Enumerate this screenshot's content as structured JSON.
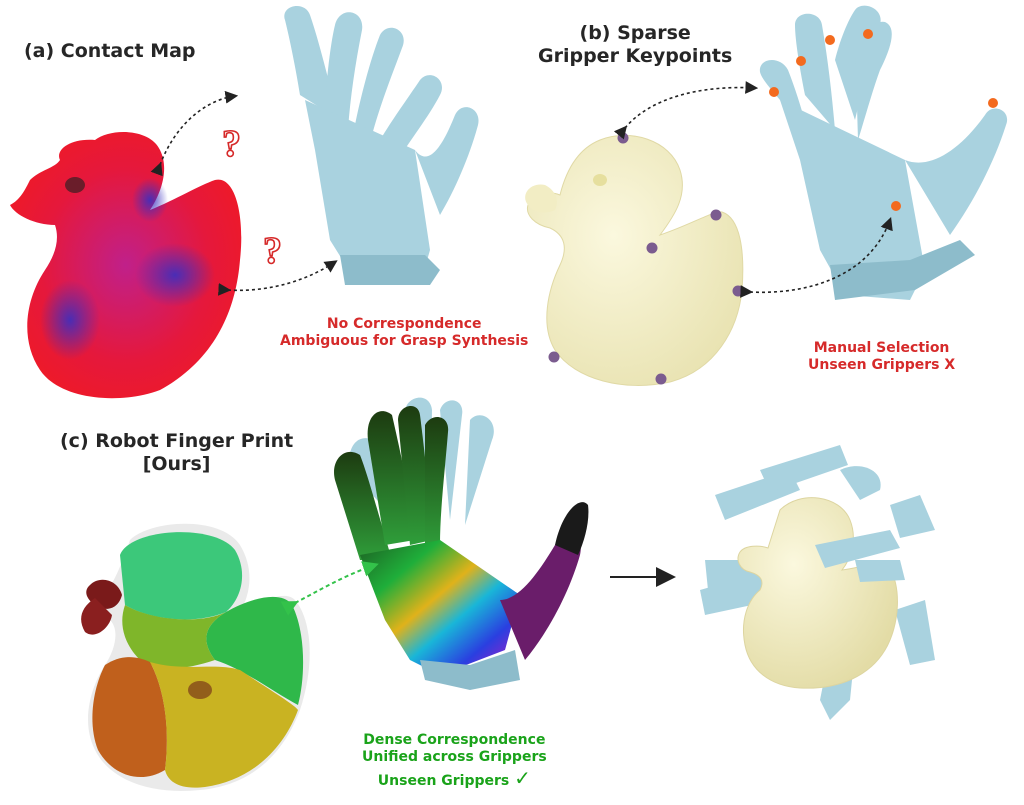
{
  "panel_a": {
    "title": "(a) Contact Map",
    "question_mark": "?",
    "note_line1": "No Correspondence",
    "note_line2": "Ambiguous for Grasp  Synthesis"
  },
  "panel_b": {
    "title_line1": "(b) Sparse",
    "title_line2": "Gripper Keypoints",
    "note_line1": "Manual Selection",
    "note_line2": "Unseen Grippers X"
  },
  "panel_c": {
    "title_line1": "(c) Robot Finger Print",
    "title_line2": "[Ours]",
    "note_line1": "Dense Correspondence",
    "note_line2": "Unified across Grippers",
    "note_line3": "Unseen Grippers",
    "check_mark": "✓"
  },
  "colors": {
    "hand": "#a9d2df",
    "hand_shadow": "#8dbccb",
    "duck_cream": "#f7f3cf",
    "keypoint_duck": "#7b5c8f",
    "keypoint_hand": "#f36a1e",
    "red_text": "#d62a2a",
    "green_text": "#1aa31a"
  }
}
